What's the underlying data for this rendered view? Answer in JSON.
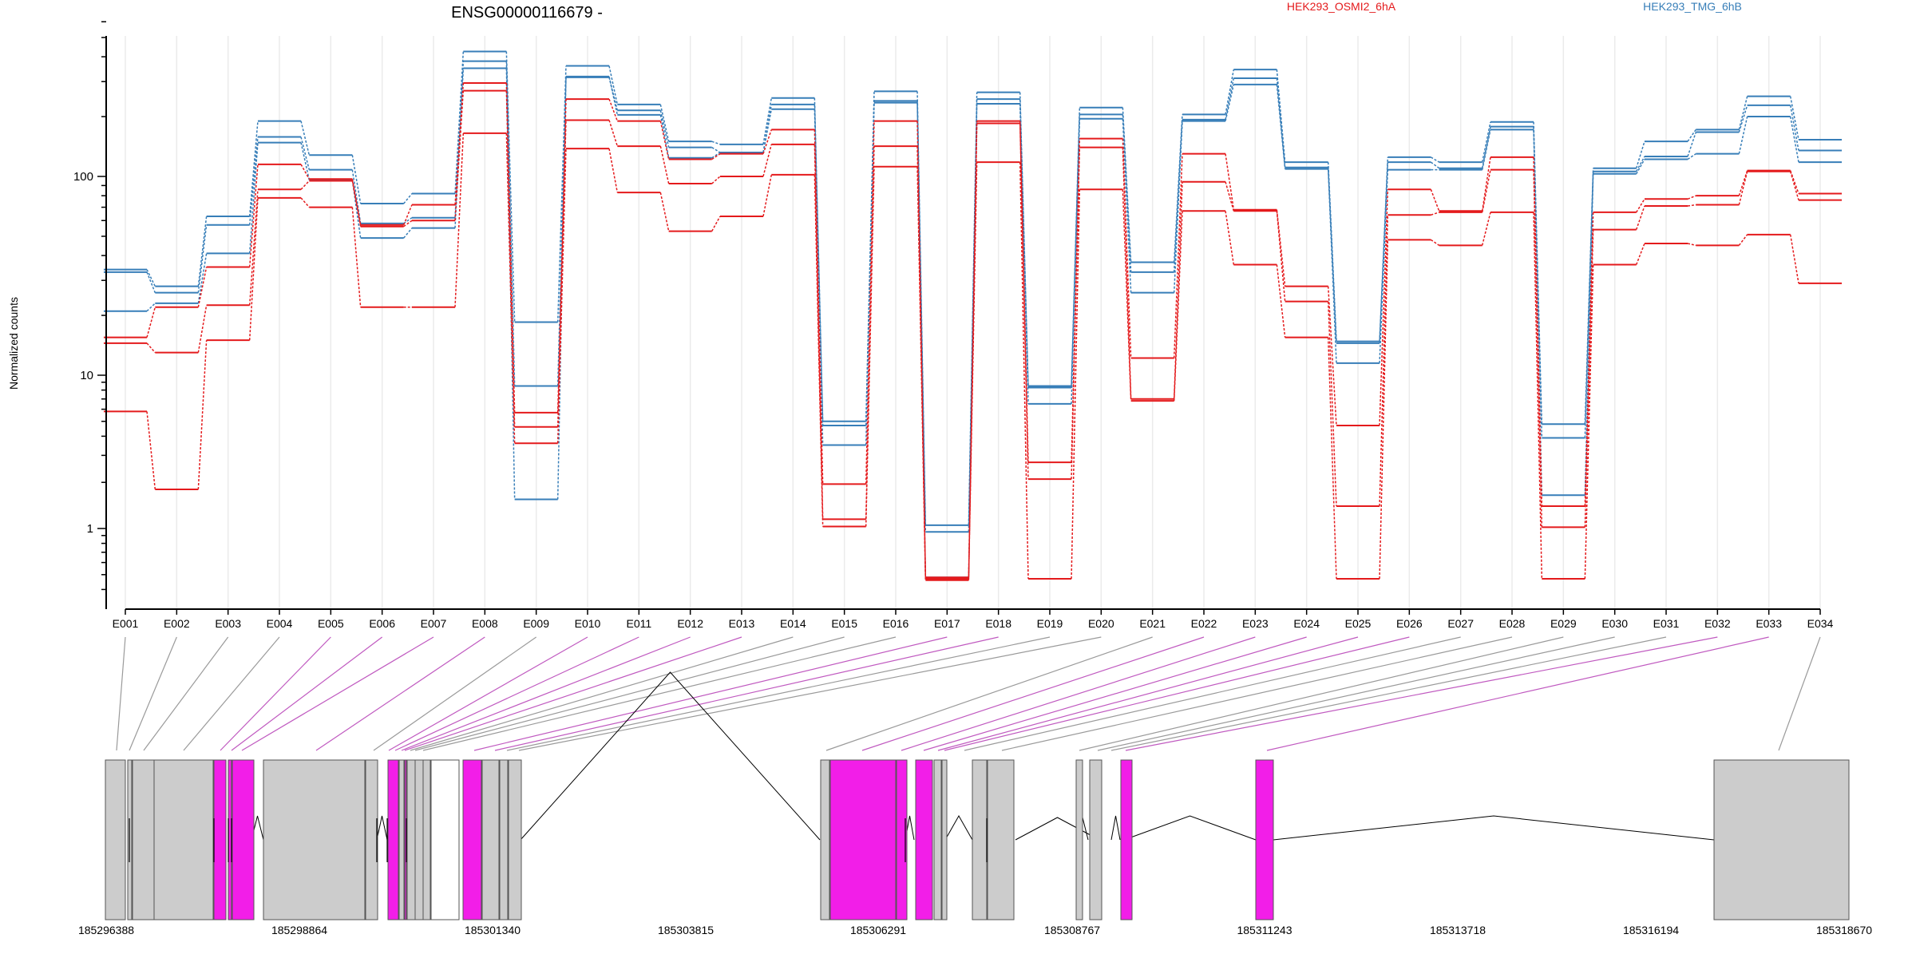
{
  "gene_title": "ENSG00000116679 -",
  "legend": [
    {
      "label": "HEK293_OSMI2_6hA",
      "color": "#e41a1c"
    },
    {
      "label": "HEK293_TMG_6hB",
      "color": "#377eb8"
    }
  ],
  "chart_data": {
    "type": "line",
    "title": "ENSG00000116679 -",
    "ylabel": "Normalized counts",
    "yscale": "log",
    "ylim": [
      0.4,
      600
    ],
    "yticks": [
      "1",
      "10",
      "100"
    ],
    "grid": "vertical",
    "legend_position": "top-right",
    "categories": [
      "E001",
      "E002",
      "E003",
      "E004",
      "E005",
      "E006",
      "E007",
      "E008",
      "E009",
      "E010",
      "E011",
      "E012",
      "E013",
      "E014",
      "E015",
      "E016",
      "E017",
      "E018",
      "E019",
      "E020",
      "E021",
      "E022",
      "E023",
      "E024",
      "E025",
      "E026",
      "E027",
      "E028",
      "E029",
      "E030",
      "E031",
      "E032",
      "E033",
      "E034"
    ],
    "series": [
      {
        "group": "HEK293_TMG_6hB",
        "color": "#377eb8",
        "values": [
          34,
          28,
          63,
          190,
          128,
          73,
          82,
          425,
          18.5,
          360,
          230,
          150,
          145,
          248,
          5,
          268,
          1.05,
          265,
          8.5,
          222,
          37,
          205,
          345,
          118,
          14.8,
          125,
          118,
          188,
          4.8,
          110,
          150,
          172,
          253,
          153
        ]
      },
      {
        "group": "HEK293_TMG_6hB",
        "color": "#377eb8",
        "values": [
          33,
          26,
          57,
          158,
          108,
          58,
          62,
          380,
          8.5,
          315,
          215,
          140,
          132,
          230,
          4.7,
          240,
          0.95,
          245,
          8.3,
          205,
          33,
          193,
          312,
          111,
          14.5,
          118,
          110,
          178,
          3.9,
          106,
          126,
          167,
          228,
          135
        ]
      },
      {
        "group": "HEK293_TMG_6hB",
        "color": "#377eb8",
        "values": [
          21,
          23,
          41,
          148,
          96,
          49,
          55,
          350,
          1.55,
          318,
          204,
          124,
          132,
          218,
          3.5,
          235,
          0.48,
          232,
          6.5,
          195,
          26,
          190,
          290,
          109,
          11.5,
          108,
          108,
          172,
          1.65,
          103,
          122,
          130,
          200,
          118
        ]
      },
      {
        "group": "HEK293_OSMI2_6hA",
        "color": "#e41a1c",
        "values": [
          15.5,
          22,
          35,
          115,
          97,
          57,
          72,
          295,
          5.7,
          245,
          190,
          122,
          130,
          172,
          1.95,
          190,
          0.48,
          190,
          2.7,
          155,
          12.2,
          130,
          68,
          28,
          4.7,
          86,
          67,
          125,
          1.4,
          66,
          77,
          80,
          107,
          82
        ]
      },
      {
        "group": "HEK293_OSMI2_6hA",
        "color": "#e41a1c",
        "values": [
          14.5,
          13,
          22.5,
          86,
          95,
          56,
          60,
          270,
          4.6,
          192,
          142,
          92,
          100,
          145,
          1.15,
          142,
          0.46,
          185,
          2.1,
          140,
          7,
          94,
          67,
          23.5,
          1.4,
          64,
          66,
          108,
          1.02,
          54,
          71,
          72,
          106,
          76
        ]
      },
      {
        "group": "HEK293_OSMI2_6hA",
        "color": "#e41a1c",
        "values": [
          5.8,
          1.8,
          15,
          78,
          70,
          22,
          22,
          165,
          3.6,
          138,
          83,
          53,
          63,
          102,
          1.03,
          112,
          0.47,
          118,
          0.47,
          86,
          6.8,
          67,
          36,
          15.5,
          0.47,
          48,
          45,
          66,
          0.47,
          36,
          46,
          45,
          51,
          29
        ]
      }
    ]
  },
  "gene_model": {
    "coordinates": [
      "185296388",
      "185298864",
      "185301340",
      "185303815",
      "185306291",
      "185308767",
      "185311243",
      "185313718",
      "185316194",
      "185318670"
    ]
  }
}
